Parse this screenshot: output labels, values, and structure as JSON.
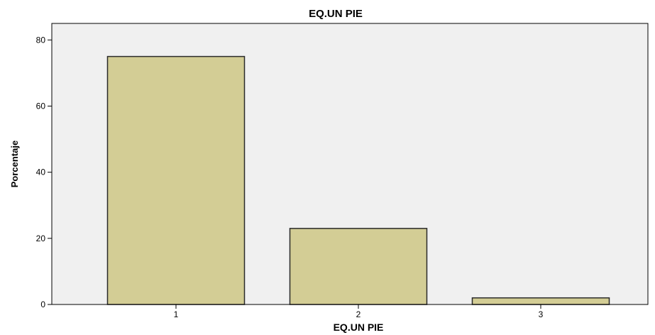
{
  "chart_data": {
    "type": "bar",
    "title": "EQ.UN PIE",
    "xlabel": "EQ.UN PIE",
    "ylabel": "Porcentaje",
    "categories": [
      "1",
      "2",
      "3"
    ],
    "values": [
      75,
      23,
      2
    ],
    "ylim": [
      0,
      85
    ],
    "yticks": [
      0,
      20,
      40,
      60,
      80
    ],
    "yticklabels": [
      "0",
      "20",
      "40",
      "60",
      "80"
    ],
    "grid": false,
    "legend": "none",
    "colors": {
      "bar_fill": "#d3cd95",
      "bar_stroke": "#2a2a2a",
      "plot_background": "#f0f0f0",
      "axis": "#000000"
    }
  }
}
